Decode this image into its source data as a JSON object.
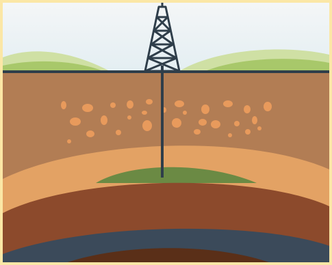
{
  "colors": {
    "frame": "#fbe7a6",
    "sky_top": "#f4f6f7",
    "sky_bottom": "#e3eef2",
    "hill_far": "#cfe0a4",
    "hill_near": "#a8c86a",
    "ground_line": "#2f3e4a",
    "topsoil": "#b27d54",
    "rock_chips": "#e89a5c",
    "sand_layer": "#e3a264",
    "oil_reservoir": "#6b8a44",
    "clay_layer": "#8c4a2c",
    "shale_layer": "#3b4a5a",
    "deep_rock": "#5a2f18",
    "derrick": "#2f3e4a",
    "well_pipe": "#2f3e4a"
  },
  "icons": {
    "rig": "oil-derrick-icon",
    "pipe": "drill-pipe-icon"
  }
}
